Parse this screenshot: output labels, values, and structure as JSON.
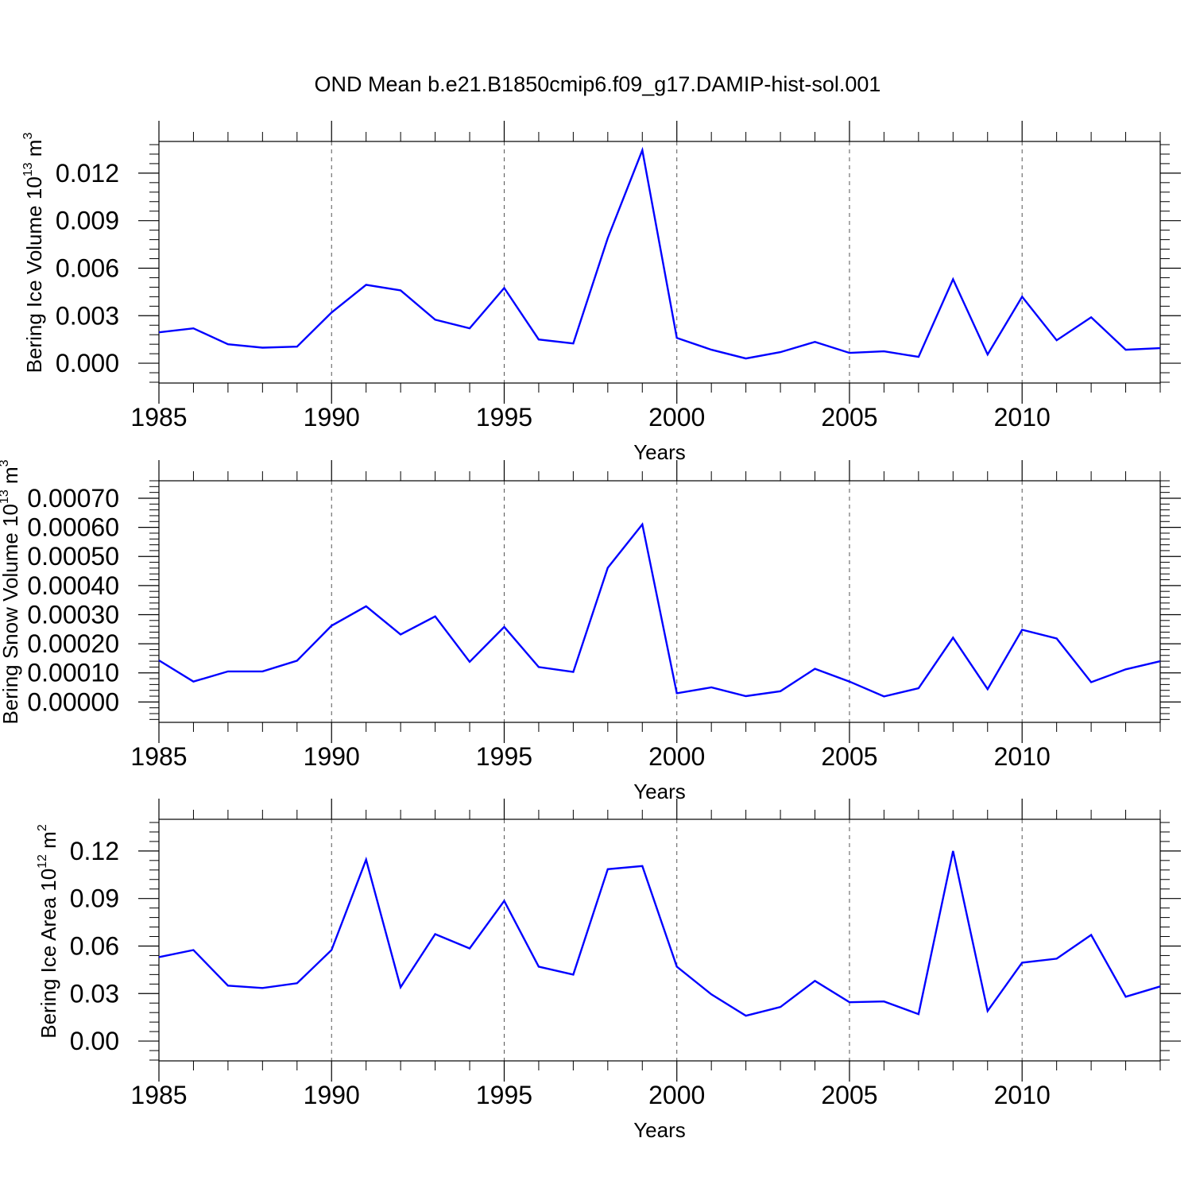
{
  "title": "OND Mean b.e21.B1850cmip6.f09_g17.DAMIP-hist-sol.001",
  "chart_data": [
    {
      "type": "line",
      "title": "OND Mean b.e21.B1850cmip6.f09_g17.DAMIP-hist-sol.001",
      "xlabel": "Years",
      "ylabel": {
        "base": "Bering Ice Volume 10",
        "exp": "13",
        "unit": " m",
        "unit_exp": "3"
      },
      "xlim": [
        1985,
        2014
      ],
      "ylim": [
        -0.00125,
        0.014
      ],
      "x_ticks": [
        1985,
        1990,
        1995,
        2000,
        2005,
        2010
      ],
      "x_tick_labels": [
        "1985",
        "1990",
        "1995",
        "2000",
        "2005",
        "2010"
      ],
      "y_ticks": [
        0,
        0.003,
        0.006,
        0.009,
        0.012
      ],
      "y_tick_labels": [
        "0.000",
        "0.003",
        "0.006",
        "0.009",
        "0.012"
      ],
      "y_minor_step": 0.0006,
      "series": [
        {
          "name": "Bering Ice Volume",
          "color": "#0000ff",
          "x": [
            1985,
            1986,
            1987,
            1988,
            1989,
            1990,
            1991,
            1992,
            1993,
            1994,
            1995,
            1996,
            1997,
            1998,
            1999,
            2000,
            2001,
            2002,
            2003,
            2004,
            2005,
            2006,
            2007,
            2008,
            2009,
            2010,
            2011,
            2012,
            2013,
            2014
          ],
          "values": [
            0.00195,
            0.0022,
            0.0012,
            0.00098,
            0.00105,
            0.0032,
            0.00495,
            0.0046,
            0.00275,
            0.0022,
            0.00475,
            0.0015,
            0.00125,
            0.0079,
            0.01345,
            0.0016,
            0.00085,
            0.0003,
            0.0007,
            0.00135,
            0.00065,
            0.00075,
            0.0004,
            0.0053,
            0.00055,
            0.0042,
            0.00145,
            0.0029,
            0.00085,
            0.00095
          ]
        }
      ]
    },
    {
      "type": "line",
      "xlabel": "Years",
      "ylabel": {
        "base": "Bering Snow Volume 10",
        "exp": "13",
        "unit": " m",
        "unit_exp": "3"
      },
      "xlim": [
        1985,
        2014
      ],
      "ylim": [
        -7e-05,
        0.00076
      ],
      "x_ticks": [
        1985,
        1990,
        1995,
        2000,
        2005,
        2010
      ],
      "x_tick_labels": [
        "1985",
        "1990",
        "1995",
        "2000",
        "2005",
        "2010"
      ],
      "y_ticks": [
        0,
        0.0001,
        0.0002,
        0.0003,
        0.0004,
        0.0005,
        0.0006,
        0.0007
      ],
      "y_tick_labels": [
        "0.00000",
        "0.00010",
        "0.00020",
        "0.00030",
        "0.00040",
        "0.00050",
        "0.00060",
        "0.00070"
      ],
      "y_minor_step": 2e-05,
      "series": [
        {
          "name": "Bering Snow Volume",
          "color": "#0000ff",
          "x": [
            1985,
            1986,
            1987,
            1988,
            1989,
            1990,
            1991,
            1992,
            1993,
            1994,
            1995,
            1996,
            1997,
            1998,
            1999,
            2000,
            2001,
            2002,
            2003,
            2004,
            2005,
            2006,
            2007,
            2008,
            2009,
            2010,
            2011,
            2012,
            2013,
            2014
          ],
          "values": [
            0.000143,
            7e-05,
            0.000105,
            0.000105,
            0.000142,
            0.000262,
            0.000329,
            0.000232,
            0.000294,
            0.000138,
            0.000258,
            0.00012,
            0.000103,
            0.000461,
            0.00061,
            3e-05,
            5e-05,
            2e-05,
            3.7e-05,
            0.000114,
            7e-05,
            1.9e-05,
            4.7e-05,
            0.000221,
            4.4e-05,
            0.000248,
            0.000218,
            6.8e-05,
            0.000112,
            0.00014
          ]
        }
      ]
    },
    {
      "type": "line",
      "xlabel": "Years",
      "ylabel": {
        "base": "Bering Ice Area 10",
        "exp": "12",
        "unit": " m",
        "unit_exp": "2"
      },
      "xlim": [
        1985,
        2014
      ],
      "ylim": [
        -0.0125,
        0.14
      ],
      "x_ticks": [
        1985,
        1990,
        1995,
        2000,
        2005,
        2010
      ],
      "x_tick_labels": [
        "1985",
        "1990",
        "1995",
        "2000",
        "2005",
        "2010"
      ],
      "y_ticks": [
        0,
        0.03,
        0.06,
        0.09,
        0.12
      ],
      "y_tick_labels": [
        "0.00",
        "0.03",
        "0.06",
        "0.09",
        "0.12"
      ],
      "y_minor_step": 0.006,
      "series": [
        {
          "name": "Bering Ice Area",
          "color": "#0000ff",
          "x": [
            1985,
            1986,
            1987,
            1988,
            1989,
            1990,
            1991,
            1992,
            1993,
            1994,
            1995,
            1996,
            1997,
            1998,
            1999,
            2000,
            2001,
            2002,
            2003,
            2004,
            2005,
            2006,
            2007,
            2008,
            2009,
            2010,
            2011,
            2012,
            2013,
            2014
          ],
          "values": [
            0.053,
            0.0575,
            0.035,
            0.0335,
            0.0365,
            0.0575,
            0.1145,
            0.034,
            0.0675,
            0.0585,
            0.0885,
            0.047,
            0.042,
            0.1085,
            0.1105,
            0.047,
            0.0295,
            0.016,
            0.0215,
            0.038,
            0.0245,
            0.025,
            0.017,
            0.12,
            0.019,
            0.0495,
            0.052,
            0.067,
            0.028,
            0.0345
          ]
        }
      ]
    }
  ]
}
